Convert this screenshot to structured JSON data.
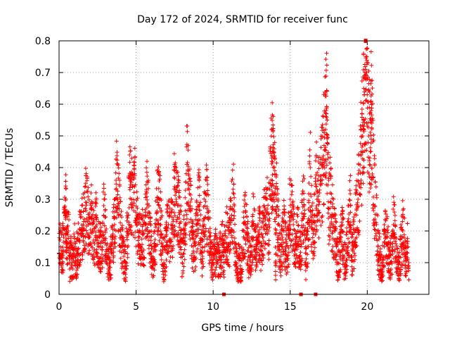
{
  "chart_data": {
    "type": "scatter",
    "title": "Day 172 of 2024, SRMTID for receiver func",
    "xlabel": "GPS time / hours",
    "ylabel": "SRMTID / TECUs",
    "xlim": [
      0,
      24
    ],
    "ylim": [
      0,
      0.8
    ],
    "xticks": [
      0,
      5,
      10,
      15,
      20
    ],
    "yticks": [
      0,
      0.1,
      0.2,
      0.3,
      0.4,
      0.5,
      0.6,
      0.7,
      0.8
    ],
    "xtick_labels": [
      "0",
      "5",
      "10",
      "15",
      "20"
    ],
    "ytick_labels": [
      "0",
      "0.1",
      "0.2",
      "0.3",
      "0.4",
      "0.5",
      "0.6",
      "0.7",
      "0.8"
    ],
    "grid": true,
    "marker": "plus",
    "color": "#ff0000",
    "x_range_of_data": [
      0,
      22.7
    ],
    "series": [
      {
        "name": "SRMTID",
        "points": [
          [
            0.0,
            0.13
          ],
          [
            0.1,
            0.15
          ],
          [
            0.2,
            0.12
          ],
          [
            0.3,
            0.18
          ],
          [
            0.4,
            0.25
          ],
          [
            0.45,
            0.26
          ],
          [
            0.5,
            0.14
          ],
          [
            0.6,
            0.2
          ],
          [
            0.7,
            0.1
          ],
          [
            0.8,
            0.12
          ],
          [
            0.9,
            0.08
          ],
          [
            1.0,
            0.15
          ],
          [
            1.1,
            0.1
          ],
          [
            1.2,
            0.14
          ],
          [
            1.3,
            0.17
          ],
          [
            1.4,
            0.19
          ],
          [
            1.5,
            0.21
          ],
          [
            1.6,
            0.23
          ],
          [
            1.7,
            0.27
          ],
          [
            1.8,
            0.29
          ],
          [
            1.9,
            0.22
          ],
          [
            2.0,
            0.18
          ],
          [
            2.1,
            0.24
          ],
          [
            2.2,
            0.2
          ],
          [
            2.3,
            0.16
          ],
          [
            2.4,
            0.25
          ],
          [
            2.5,
            0.12
          ],
          [
            2.6,
            0.18
          ],
          [
            2.7,
            0.15
          ],
          [
            2.8,
            0.14
          ],
          [
            2.9,
            0.28
          ],
          [
            3.0,
            0.2
          ],
          [
            3.1,
            0.11
          ],
          [
            3.2,
            0.08
          ],
          [
            3.3,
            0.1
          ],
          [
            3.4,
            0.14
          ],
          [
            3.5,
            0.18
          ],
          [
            3.6,
            0.22
          ],
          [
            3.7,
            0.36
          ],
          [
            3.8,
            0.3
          ],
          [
            3.9,
            0.27
          ],
          [
            4.0,
            0.2
          ],
          [
            4.1,
            0.15
          ],
          [
            4.2,
            0.12
          ],
          [
            4.3,
            0.08
          ],
          [
            4.4,
            0.18
          ],
          [
            4.5,
            0.25
          ],
          [
            4.6,
            0.33
          ],
          [
            4.7,
            0.3
          ],
          [
            4.8,
            0.28
          ],
          [
            4.9,
            0.34
          ],
          [
            5.0,
            0.24
          ],
          [
            5.1,
            0.2
          ],
          [
            5.2,
            0.18
          ],
          [
            5.3,
            0.15
          ],
          [
            5.4,
            0.2
          ],
          [
            5.5,
            0.14
          ],
          [
            5.6,
            0.22
          ],
          [
            5.7,
            0.32
          ],
          [
            5.8,
            0.26
          ],
          [
            5.9,
            0.18
          ],
          [
            6.0,
            0.12
          ],
          [
            6.1,
            0.1
          ],
          [
            6.2,
            0.16
          ],
          [
            6.3,
            0.22
          ],
          [
            6.4,
            0.29
          ],
          [
            6.5,
            0.3
          ],
          [
            6.6,
            0.22
          ],
          [
            6.7,
            0.15
          ],
          [
            6.8,
            0.1
          ],
          [
            6.9,
            0.14
          ],
          [
            7.0,
            0.2
          ],
          [
            7.1,
            0.22
          ],
          [
            7.2,
            0.17
          ],
          [
            7.3,
            0.26
          ],
          [
            7.4,
            0.21
          ],
          [
            7.5,
            0.34
          ],
          [
            7.6,
            0.3
          ],
          [
            7.7,
            0.28
          ],
          [
            7.8,
            0.24
          ],
          [
            7.9,
            0.19
          ],
          [
            8.0,
            0.1
          ],
          [
            8.1,
            0.16
          ],
          [
            8.2,
            0.22
          ],
          [
            8.3,
            0.41
          ],
          [
            8.4,
            0.38
          ],
          [
            8.5,
            0.27
          ],
          [
            8.6,
            0.2
          ],
          [
            8.7,
            0.13
          ],
          [
            8.8,
            0.12
          ],
          [
            8.9,
            0.2
          ],
          [
            9.0,
            0.25
          ],
          [
            9.1,
            0.28
          ],
          [
            9.2,
            0.17
          ],
          [
            9.3,
            0.12
          ],
          [
            9.4,
            0.2
          ],
          [
            9.5,
            0.32
          ],
          [
            9.6,
            0.27
          ],
          [
            9.7,
            0.2
          ],
          [
            9.8,
            0.15
          ],
          [
            9.9,
            0.1
          ],
          [
            10.0,
            0.12
          ],
          [
            10.1,
            0.15
          ],
          [
            10.2,
            0.12
          ],
          [
            10.3,
            0.1
          ],
          [
            10.4,
            0.14
          ],
          [
            10.5,
            0.12
          ],
          [
            10.6,
            0.16
          ],
          [
            10.7,
            0.1
          ],
          [
            10.8,
            0.2
          ],
          [
            10.9,
            0.18
          ],
          [
            11.0,
            0.14
          ],
          [
            11.1,
            0.2
          ],
          [
            11.2,
            0.25
          ],
          [
            11.3,
            0.32
          ],
          [
            11.4,
            0.16
          ],
          [
            11.5,
            0.1
          ],
          [
            11.6,
            0.08
          ],
          [
            11.7,
            0.12
          ],
          [
            11.8,
            0.04
          ],
          [
            11.9,
            0.14
          ],
          [
            12.0,
            0.2
          ],
          [
            12.1,
            0.22
          ],
          [
            12.2,
            0.18
          ],
          [
            12.3,
            0.12
          ],
          [
            12.4,
            0.09
          ],
          [
            12.5,
            0.15
          ],
          [
            12.6,
            0.22
          ],
          [
            12.7,
            0.2
          ],
          [
            12.8,
            0.12
          ],
          [
            12.9,
            0.16
          ],
          [
            13.0,
            0.19
          ],
          [
            13.1,
            0.15
          ],
          [
            13.2,
            0.18
          ],
          [
            13.3,
            0.25
          ],
          [
            13.4,
            0.22
          ],
          [
            13.5,
            0.3
          ],
          [
            13.6,
            0.2
          ],
          [
            13.7,
            0.35
          ],
          [
            13.8,
            0.42
          ],
          [
            13.85,
            0.45
          ],
          [
            13.9,
            0.4
          ],
          [
            14.0,
            0.38
          ],
          [
            14.05,
            0.06
          ],
          [
            14.1,
            0.3
          ],
          [
            14.2,
            0.22
          ],
          [
            14.3,
            0.15
          ],
          [
            14.4,
            0.12
          ],
          [
            14.5,
            0.18
          ],
          [
            14.6,
            0.2
          ],
          [
            14.7,
            0.15
          ],
          [
            14.8,
            0.12
          ],
          [
            14.9,
            0.18
          ],
          [
            15.0,
            0.3
          ],
          [
            15.1,
            0.25
          ],
          [
            15.2,
            0.22
          ],
          [
            15.3,
            0.14
          ],
          [
            15.4,
            0.18
          ],
          [
            15.5,
            0.2
          ],
          [
            15.6,
            0.12
          ],
          [
            15.7,
            0.15
          ],
          [
            15.8,
            0.24
          ],
          [
            15.9,
            0.28
          ],
          [
            16.0,
            0.1
          ],
          [
            16.1,
            0.15
          ],
          [
            16.2,
            0.22
          ],
          [
            16.3,
            0.4
          ],
          [
            16.4,
            0.22
          ],
          [
            16.5,
            0.2
          ],
          [
            16.6,
            0.25
          ],
          [
            16.7,
            0.34
          ],
          [
            16.8,
            0.3
          ],
          [
            16.9,
            0.32
          ],
          [
            17.0,
            0.36
          ],
          [
            17.1,
            0.4
          ],
          [
            17.2,
            0.47
          ],
          [
            17.3,
            0.52
          ],
          [
            17.35,
            0.57
          ],
          [
            17.4,
            0.5
          ],
          [
            17.5,
            0.27
          ],
          [
            17.6,
            0.32
          ],
          [
            17.7,
            0.25
          ],
          [
            17.8,
            0.22
          ],
          [
            17.9,
            0.2
          ],
          [
            18.0,
            0.15
          ],
          [
            18.1,
            0.1
          ],
          [
            18.2,
            0.12
          ],
          [
            18.3,
            0.18
          ],
          [
            18.4,
            0.2
          ],
          [
            18.5,
            0.12
          ],
          [
            18.6,
            0.1
          ],
          [
            18.7,
            0.15
          ],
          [
            18.8,
            0.22
          ],
          [
            18.9,
            0.28
          ],
          [
            19.0,
            0.12
          ],
          [
            19.1,
            0.15
          ],
          [
            19.2,
            0.2
          ],
          [
            19.3,
            0.25
          ],
          [
            19.4,
            0.3
          ],
          [
            19.5,
            0.34
          ],
          [
            19.6,
            0.45
          ],
          [
            19.7,
            0.5
          ],
          [
            19.75,
            0.55
          ],
          [
            19.8,
            0.63
          ],
          [
            19.85,
            0.69
          ],
          [
            19.9,
            0.71
          ],
          [
            19.95,
            0.75
          ],
          [
            20.0,
            0.68
          ],
          [
            20.1,
            0.5
          ],
          [
            20.2,
            0.45
          ],
          [
            20.25,
            0.58
          ],
          [
            20.3,
            0.54
          ],
          [
            20.4,
            0.37
          ],
          [
            20.5,
            0.28
          ],
          [
            20.6,
            0.22
          ],
          [
            20.7,
            0.15
          ],
          [
            20.8,
            0.12
          ],
          [
            20.9,
            0.08
          ],
          [
            21.0,
            0.1
          ],
          [
            21.1,
            0.15
          ],
          [
            21.2,
            0.2
          ],
          [
            21.3,
            0.18
          ],
          [
            21.4,
            0.12
          ],
          [
            21.5,
            0.1
          ],
          [
            21.6,
            0.14
          ],
          [
            21.7,
            0.22
          ],
          [
            21.8,
            0.18
          ],
          [
            21.9,
            0.12
          ],
          [
            22.0,
            0.08
          ],
          [
            22.1,
            0.1
          ],
          [
            22.2,
            0.15
          ],
          [
            22.3,
            0.2
          ],
          [
            22.4,
            0.18
          ],
          [
            22.5,
            0.12
          ],
          [
            22.6,
            0.16
          ],
          [
            22.7,
            0.1
          ]
        ]
      }
    ],
    "zero_markers_x": [
      10.7,
      15.7,
      16.65
    ]
  }
}
